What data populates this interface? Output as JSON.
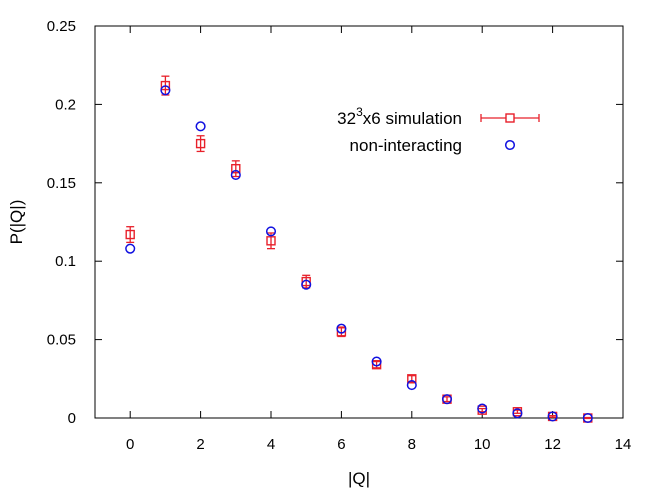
{
  "chart_data": {
    "type": "scatter",
    "title": "",
    "xlabel": "|Q|",
    "ylabel": "P(|Q|)",
    "xlim": [
      -1,
      14
    ],
    "ylim": [
      0,
      0.25
    ],
    "xticks": [
      0,
      2,
      4,
      6,
      8,
      10,
      12,
      14
    ],
    "xtick_labels": [
      "0",
      "2",
      "4",
      "6",
      "8",
      "10",
      "12",
      "14"
    ],
    "yticks": [
      0,
      0.05,
      0.1,
      0.15,
      0.2,
      0.25
    ],
    "ytick_labels": [
      "0",
      "0.05",
      "0.1",
      "0.15",
      "0.2",
      "0.25"
    ],
    "grid": false,
    "legend_position": "top-right",
    "series": [
      {
        "name": "32³x6 simulation",
        "legend_parts": {
          "base": "32",
          "sup": "3",
          "rest": "x6 simulation"
        },
        "marker": "square",
        "color": "#e8202a",
        "error_bars": true,
        "x": [
          0,
          1,
          2,
          3,
          4,
          5,
          6,
          7,
          8,
          9,
          10,
          11,
          12,
          13
        ],
        "y": [
          0.117,
          0.212,
          0.175,
          0.159,
          0.113,
          0.087,
          0.055,
          0.034,
          0.025,
          0.012,
          0.005,
          0.004,
          0.001,
          0.0
        ],
        "yerr": [
          0.005,
          0.006,
          0.005,
          0.005,
          0.005,
          0.004,
          0.003,
          0.002,
          0.002,
          0.0015,
          0.001,
          0.001,
          0.0005,
          0.0003
        ]
      },
      {
        "name": "non-interacting",
        "marker": "circle",
        "color": "#1010e0",
        "error_bars": false,
        "x": [
          0,
          1,
          2,
          3,
          4,
          5,
          6,
          7,
          8,
          9,
          10,
          11,
          12,
          13
        ],
        "y": [
          0.108,
          0.209,
          0.186,
          0.155,
          0.119,
          0.085,
          0.057,
          0.036,
          0.021,
          0.012,
          0.006,
          0.003,
          0.001,
          0.0
        ]
      }
    ]
  }
}
